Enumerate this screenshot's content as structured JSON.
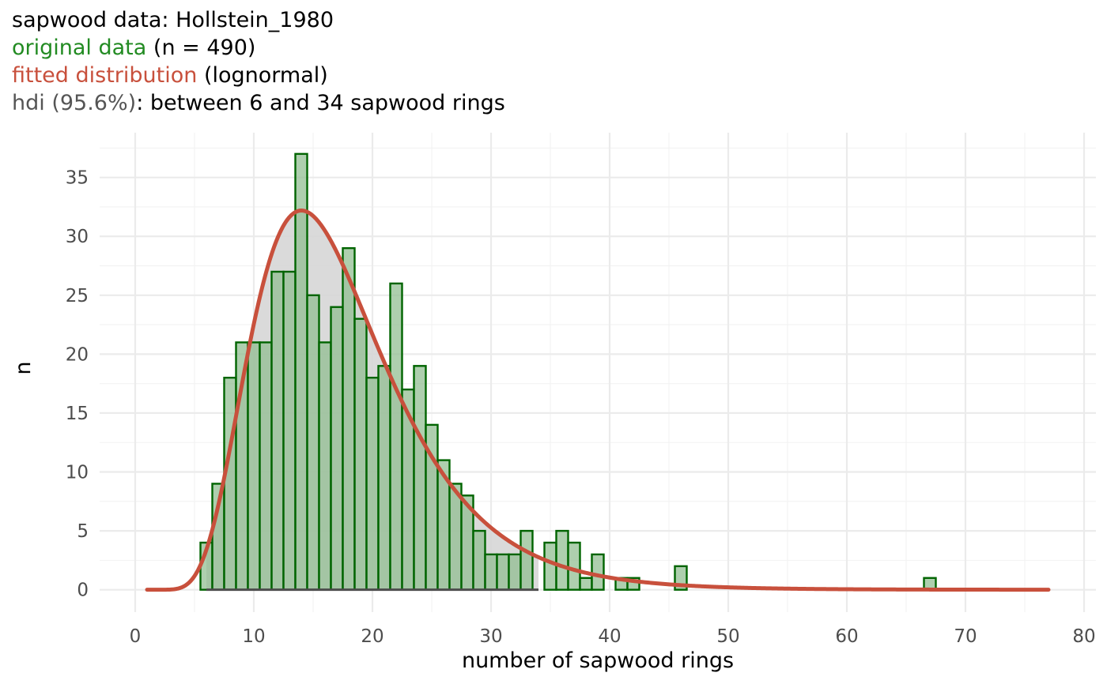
{
  "titles": {
    "line1": "sapwood data: Hollstein_1980",
    "line2_colored": "original data",
    "line2_rest": " (n = 490)",
    "line3_colored": "fitted distribution",
    "line3_rest": " (lognormal)",
    "line4_colored": "hdi (95.6%)",
    "line4_rest": ": between 6 and 34 sapwood rings"
  },
  "colors": {
    "bar_fill": "#8fbd8f",
    "bar_stroke": "#006400",
    "curve": "#c8503c",
    "hdi_fill": "#d6d6d6",
    "hdi_line": "#4d4d4d",
    "title_green": "#228b22",
    "title_red": "#c8503c",
    "title_grey": "#555555"
  },
  "chart_data": {
    "type": "bar",
    "xlabel": "number of sapwood rings",
    "ylabel": "n",
    "xlim": [
      -3,
      81
    ],
    "ylim": [
      -1.9,
      38.8
    ],
    "xticks": [
      0,
      10,
      20,
      30,
      40,
      50,
      60,
      70,
      80
    ],
    "yticks": [
      0,
      5,
      10,
      15,
      20,
      25,
      30,
      35
    ],
    "grid": true,
    "x": [
      6,
      7,
      8,
      9,
      10,
      11,
      12,
      13,
      14,
      15,
      16,
      17,
      18,
      19,
      20,
      21,
      22,
      23,
      24,
      25,
      26,
      27,
      28,
      29,
      30,
      31,
      32,
      33,
      35,
      36,
      37,
      38,
      39,
      41,
      42,
      46,
      67
    ],
    "values": [
      4,
      9,
      18,
      21,
      21,
      21,
      27,
      27,
      37,
      25,
      21,
      24,
      29,
      23,
      18,
      19,
      26,
      17,
      19,
      14,
      11,
      9,
      8,
      5,
      3,
      3,
      3,
      5,
      4,
      5,
      4,
      1,
      3,
      1,
      1,
      2,
      1
    ],
    "fitted": {
      "distribution": "lognormal",
      "meanlog": 2.8,
      "sdlog": 0.4,
      "scale_n": 490,
      "x_range": [
        1,
        77
      ]
    },
    "hdi": {
      "probability": "95.6%",
      "lower": 6,
      "upper": 34
    }
  }
}
